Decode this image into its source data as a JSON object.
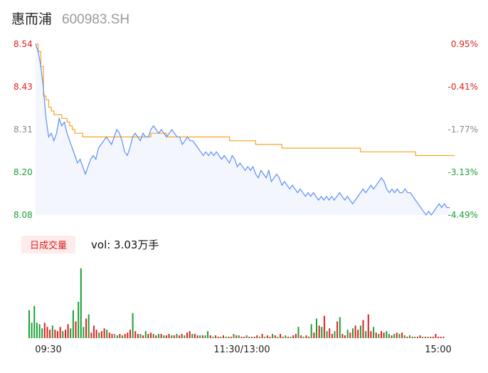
{
  "header": {
    "name": "惠而浦",
    "code": "600983.SH"
  },
  "volume_panel": {
    "tab_label": "日成交量",
    "vol_text": "vol: 3.03万手"
  },
  "colors": {
    "price_line": "#5b8ff9",
    "avg_line": "#f5a623",
    "area_fill": "#f3f6fd",
    "up": "#e02020",
    "down": "#1aa035",
    "neutral": "#888888"
  },
  "chart_data": [
    {
      "type": "line",
      "title": "",
      "x_ticks": [
        "09:30",
        "11:30/13:00",
        "15:00"
      ],
      "y_ticks_left": [
        "8.54",
        "8.43",
        "8.31",
        "8.20",
        "8.08"
      ],
      "y_ticks_right": [
        "0.95%",
        "-0.41%",
        "-1.77%",
        "-3.13%",
        "-4.49%"
      ],
      "ylim": [
        8.08,
        8.54
      ],
      "series": [
        {
          "role": "price",
          "values": [
            8.54,
            8.52,
            8.48,
            8.42,
            8.34,
            8.29,
            8.3,
            8.28,
            8.3,
            8.34,
            8.32,
            8.33,
            8.3,
            8.28,
            8.26,
            8.24,
            8.22,
            8.23,
            8.21,
            8.19,
            8.21,
            8.23,
            8.24,
            8.23,
            8.26,
            8.27,
            8.28,
            8.29,
            8.28,
            8.27,
            8.29,
            8.31,
            8.3,
            8.28,
            8.25,
            8.24,
            8.26,
            8.29,
            8.3,
            8.29,
            8.28,
            8.3,
            8.29,
            8.29,
            8.31,
            8.32,
            8.31,
            8.3,
            8.31,
            8.3,
            8.29,
            8.3,
            8.31,
            8.3,
            8.29,
            8.29,
            8.27,
            8.28,
            8.29,
            8.28,
            8.28,
            8.27,
            8.26,
            8.25,
            8.24,
            8.25,
            8.24,
            8.25,
            8.24,
            8.25,
            8.24,
            8.23,
            8.24,
            8.23,
            8.22,
            8.24,
            8.23,
            8.21,
            8.22,
            8.21,
            8.2,
            8.21,
            8.2,
            8.21,
            8.19,
            8.18,
            8.2,
            8.19,
            8.18,
            8.2,
            8.17,
            8.18,
            8.19,
            8.18,
            8.16,
            8.17,
            8.16,
            8.15,
            8.16,
            8.15,
            8.14,
            8.15,
            8.14,
            8.13,
            8.14,
            8.13,
            8.14,
            8.13,
            8.12,
            8.13,
            8.12,
            8.13,
            8.12,
            8.13,
            8.12,
            8.13,
            8.14,
            8.13,
            8.12,
            8.13,
            8.12,
            8.11,
            8.12,
            8.13,
            8.14,
            8.15,
            8.14,
            8.15,
            8.16,
            8.15,
            8.16,
            8.17,
            8.18,
            8.17,
            8.15,
            8.14,
            8.15,
            8.14,
            8.15,
            8.14,
            8.14,
            8.15,
            8.14,
            8.14,
            8.13,
            8.12,
            8.11,
            8.1,
            8.09,
            8.08,
            8.09,
            8.08,
            8.09,
            8.1,
            8.11,
            8.1,
            8.11,
            8.1,
            8.1
          ]
        },
        {
          "role": "average",
          "values": [
            8.54,
            8.52,
            8.48,
            8.4,
            8.39,
            8.37,
            8.36,
            8.35,
            8.35,
            8.35,
            8.34,
            8.34,
            8.33,
            8.32,
            8.31,
            8.3,
            8.3,
            8.3,
            8.29,
            8.29,
            8.29,
            8.29,
            8.29,
            8.29,
            8.29,
            8.29,
            8.29,
            8.29,
            8.29,
            8.29,
            8.29,
            8.29,
            8.29,
            8.29,
            8.29,
            8.29,
            8.29,
            8.29,
            8.29,
            8.29,
            8.29,
            8.29,
            8.29,
            8.29,
            8.3,
            8.3,
            8.3,
            8.3,
            8.3,
            8.3,
            8.29,
            8.29,
            8.29,
            8.29,
            8.29,
            8.29,
            8.29,
            8.29,
            8.29,
            8.29,
            8.29,
            8.29,
            8.29,
            8.29,
            8.29,
            8.29,
            8.29,
            8.29,
            8.29,
            8.29,
            8.29,
            8.29,
            8.29,
            8.29,
            8.28,
            8.28,
            8.28,
            8.28,
            8.28,
            8.28,
            8.28,
            8.28,
            8.28,
            8.28,
            8.27,
            8.27,
            8.27,
            8.27,
            8.27,
            8.27,
            8.27,
            8.27,
            8.27,
            8.27,
            8.26,
            8.26,
            8.26,
            8.26,
            8.26,
            8.26,
            8.26,
            8.26,
            8.26,
            8.26,
            8.26,
            8.26,
            8.26,
            8.26,
            8.26,
            8.26,
            8.26,
            8.26,
            8.26,
            8.26,
            8.26,
            8.26,
            8.26,
            8.26,
            8.26,
            8.26,
            8.26,
            8.26,
            8.26,
            8.26,
            8.25,
            8.25,
            8.25,
            8.25,
            8.25,
            8.25,
            8.25,
            8.25,
            8.25,
            8.25,
            8.25,
            8.25,
            8.25,
            8.25,
            8.25,
            8.25,
            8.25,
            8.25,
            8.25,
            8.25,
            8.25,
            8.24,
            8.24,
            8.24,
            8.24,
            8.24,
            8.24,
            8.24,
            8.24,
            8.24,
            8.24,
            8.24,
            8.24,
            8.24,
            8.24,
            8.24,
            8.24
          ]
        }
      ]
    },
    {
      "type": "bar",
      "title": "",
      "values": [
        0.4,
        0.22,
        0.46,
        0.22,
        0.2,
        0.14,
        0.22,
        0.16,
        0.12,
        0.18,
        0.12,
        0.1,
        0.16,
        0.1,
        0.12,
        0.2,
        0.14,
        0.4,
        0.24,
        0.52,
        1.0,
        0.16,
        0.28,
        0.34,
        0.08,
        0.18,
        0.12,
        0.08,
        0.1,
        0.14,
        0.12,
        0.08,
        0.06,
        0.06,
        0.04,
        0.06,
        0.04,
        0.06,
        0.08,
        0.12,
        0.36,
        0.1,
        0.06,
        0.06,
        0.04,
        0.1,
        0.06,
        0.08,
        0.06,
        0.04,
        0.06,
        0.06,
        0.04,
        0.04,
        0.06,
        0.04,
        0.04,
        0.06,
        0.04,
        0.06,
        0.04,
        0.08,
        0.1,
        0.06,
        0.06,
        0.04,
        0.04,
        0.04,
        0.04,
        0.1,
        0.04,
        0.02,
        0.04,
        0.02,
        0.02,
        0.04,
        0.02,
        0.02,
        0.02,
        0.06,
        0.04,
        0.04,
        0.02,
        0.02,
        0.04,
        0.02,
        0.02,
        0.02,
        0.04,
        0.02,
        0.06,
        0.02,
        0.04,
        0.02,
        0.06,
        0.04,
        0.02,
        0.06,
        0.02,
        0.04,
        0.02,
        0.02,
        0.04,
        0.06,
        0.16,
        0.04,
        0.02,
        0.04,
        0.02,
        0.2,
        0.08,
        0.28,
        0.18,
        0.16,
        0.32,
        0.1,
        0.14,
        0.06,
        0.1,
        0.24,
        0.3,
        0.06,
        0.04,
        0.12,
        0.08,
        0.14,
        0.18,
        0.12,
        0.18,
        0.26,
        0.1,
        0.34,
        0.1,
        0.16,
        0.08,
        0.06,
        0.1,
        0.08,
        0.1,
        0.06,
        0.04,
        0.06,
        0.08,
        0.06,
        0.08,
        0.04,
        0.02,
        0.04,
        0.02,
        0.02,
        0.02,
        0.04,
        0.02,
        0.02,
        0.02,
        0.02,
        0.02,
        0.06,
        0.02,
        0.02,
        0.02
      ],
      "colors": [
        "down",
        "down",
        "down",
        "down",
        "down",
        "down",
        "up",
        "up",
        "up",
        "down",
        "up",
        "up",
        "up",
        "down",
        "up",
        "up",
        "down",
        "down",
        "up",
        "down",
        "down",
        "down",
        "up",
        "down",
        "up",
        "up",
        "up",
        "down",
        "up",
        "up",
        "down",
        "up",
        "up",
        "neutral",
        "down",
        "up",
        "down",
        "up",
        "up",
        "up",
        "down",
        "up",
        "up",
        "down",
        "up",
        "down",
        "up",
        "up",
        "down",
        "up",
        "down",
        "up",
        "down",
        "up",
        "up",
        "down",
        "up",
        "down",
        "up",
        "up",
        "down",
        "up",
        "up",
        "down",
        "up",
        "up",
        "down",
        "up",
        "down",
        "down",
        "up",
        "down",
        "up",
        "up",
        "down",
        "up",
        "down",
        "up",
        "up",
        "down",
        "up",
        "down",
        "up",
        "up",
        "down",
        "up",
        "down",
        "up",
        "up",
        "down",
        "up",
        "down",
        "up",
        "up",
        "down",
        "up",
        "down",
        "up",
        "up",
        "down",
        "up",
        "down",
        "up",
        "up",
        "down",
        "up",
        "down",
        "up",
        "up",
        "down",
        "up",
        "down",
        "up",
        "down",
        "up",
        "down",
        "up",
        "up",
        "down",
        "up",
        "down",
        "up",
        "up",
        "down",
        "up",
        "down",
        "up",
        "up",
        "down",
        "up",
        "down",
        "up",
        "up",
        "down",
        "up",
        "down",
        "up",
        "up",
        "down",
        "down",
        "up",
        "down",
        "up",
        "down",
        "up",
        "down",
        "up",
        "down",
        "up",
        "down",
        "up",
        "up",
        "down",
        "up",
        "down",
        "up",
        "up",
        "up",
        "up",
        "up",
        "up"
      ]
    }
  ]
}
